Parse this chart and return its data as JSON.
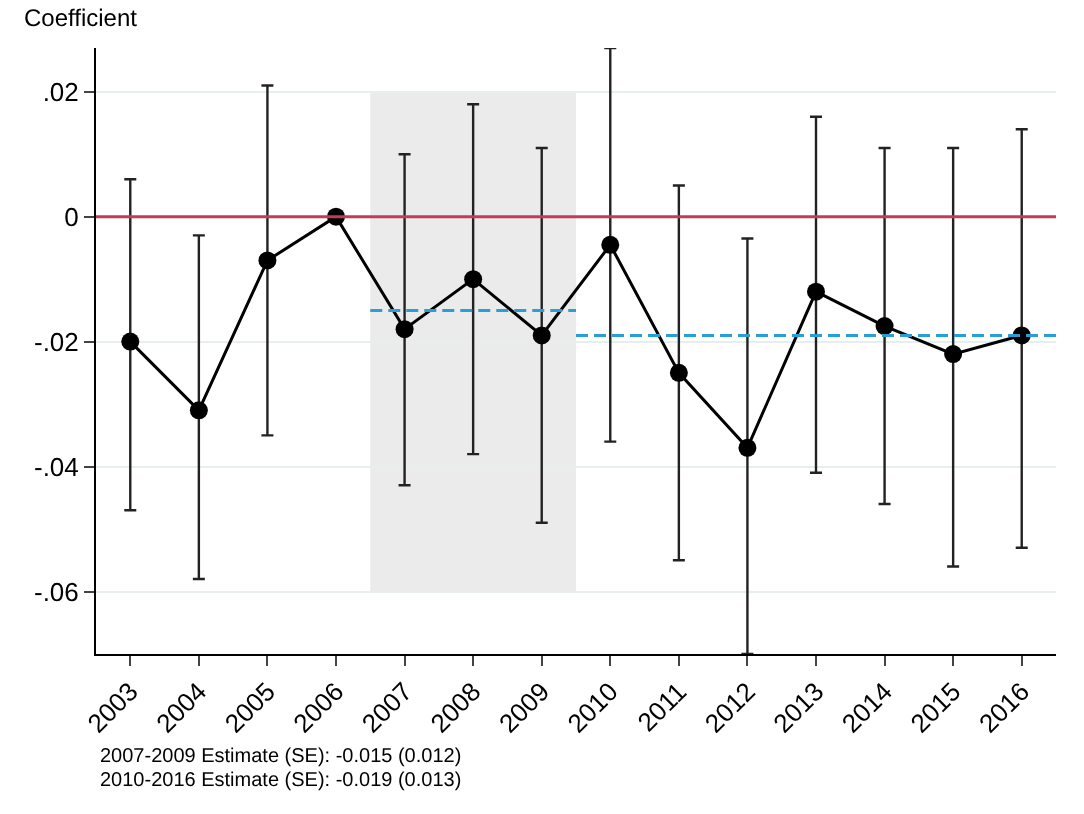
{
  "chart_data": {
    "type": "line",
    "ylabel": "Coefficient",
    "x": [
      2003,
      2004,
      2005,
      2006,
      2007,
      2008,
      2009,
      2010,
      2011,
      2012,
      2013,
      2014,
      2015,
      2016
    ],
    "series": [
      {
        "color": "#000000",
        "marker": "circle",
        "line_style": "solid",
        "values": [
          -0.02,
          -0.031,
          -0.007,
          0,
          -0.018,
          -0.01,
          -0.019,
          -0.0045,
          -0.025,
          -0.037,
          -0.012,
          -0.0175,
          -0.022,
          -0.019
        ],
        "errors": [
          [
            -0.047,
            0.006
          ],
          [
            -0.058,
            -0.003
          ],
          [
            -0.035,
            0.021
          ],
          null,
          [
            -0.043,
            0.01
          ],
          [
            -0.038,
            0.018
          ],
          [
            -0.049,
            0.011
          ],
          [
            -0.036,
            0.027
          ],
          [
            -0.055,
            0.005
          ],
          [
            -0.07,
            -0.0035
          ],
          [
            -0.041,
            0.016
          ],
          [
            -0.046,
            0.011
          ],
          [
            -0.056,
            0.011
          ],
          [
            -0.053,
            0.014
          ]
        ]
      },
      {
        "color": "#2a9fd6",
        "marker": "none",
        "line_style": "dashed",
        "x": [
          2006.5,
          2009.5
        ],
        "values": [
          -0.015,
          -0.015
        ]
      },
      {
        "color": "#2a9fd6",
        "marker": "none",
        "line_style": "dashed",
        "x": [
          2009.5,
          2016.5
        ],
        "values": [
          -0.019,
          -0.019
        ]
      }
    ],
    "ref_lines": [
      {
        "axis": "y",
        "value": 0,
        "color": "#c8385a",
        "line_style": "solid"
      }
    ],
    "bands": [
      {
        "axis": "x",
        "from": 2006.5,
        "to": 2009.5,
        "color": "#ebebeb"
      }
    ],
    "xlim": [
      2002.5,
      2016.5
    ],
    "xticks": [
      2003,
      2004,
      2005,
      2006,
      2007,
      2008,
      2009,
      2010,
      2011,
      2012,
      2013,
      2014,
      2015,
      2016
    ],
    "ylim": [
      -0.07,
      0.027
    ],
    "yticks": [
      {
        "value": -0.06,
        "label": "-.06"
      },
      {
        "value": -0.04,
        "label": "-.04"
      },
      {
        "value": -0.02,
        "label": "-.02"
      },
      0,
      {
        "value": 0.02,
        "label": ".02"
      }
    ],
    "grid": "y",
    "legend": false,
    "annotations": [
      "2007-2009 Estimate (SE): -0.015 (0.012)",
      "2010-2016 Estimate (SE): -0.019 (0.013)"
    ]
  }
}
